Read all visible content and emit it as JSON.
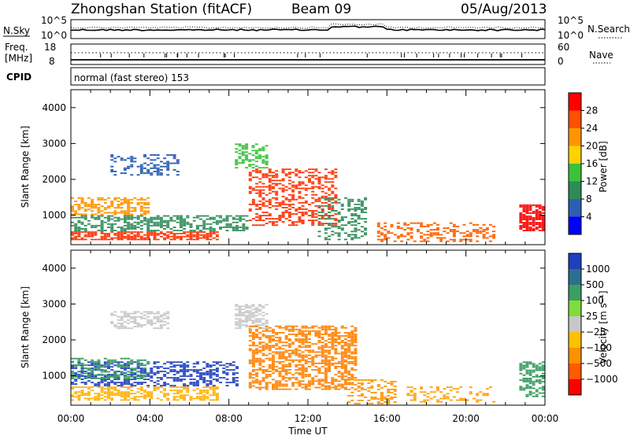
{
  "header": {
    "title": "Zhongshan Station (fitACF)",
    "beam": "Beam 09",
    "date": "05/Aug/2013"
  },
  "status_panel": {
    "nsky_label": "N.Sky",
    "nsky_ticks": [
      "10^5",
      "10^0"
    ],
    "nsearch_label": "N.Search",
    "nsearch_ticks": [
      "10^5",
      "10^0"
    ],
    "freq_label_1": "Freq.",
    "freq_label_2": "[MHz]",
    "freq_ticks": [
      "18",
      "8"
    ],
    "nave_label": "Nave",
    "nave_ticks": [
      "60",
      "0"
    ],
    "cpid_label": "CPID",
    "cpid_text": "normal (fast stereo) 153"
  },
  "chart_data": [
    {
      "type": "heatmap",
      "name": "power",
      "ylabel": "Slant Range [km]",
      "y_ticks": [
        "4000",
        "3000",
        "2000",
        "1000"
      ],
      "ylim": [
        180,
        4500
      ],
      "xlim_hours": [
        0,
        24
      ],
      "colorbar": {
        "label": "Power [dB]",
        "tick_labels": [
          "28",
          "24",
          "20",
          "16",
          "12",
          "8",
          "4"
        ],
        "colors": [
          "#ff0000",
          "#ff5000",
          "#ff9600",
          "#ffd200",
          "#39c23a",
          "#2e8b57",
          "#2b5fb3",
          "#0000ff"
        ]
      },
      "scatter_regions": [
        {
          "t0": 0.0,
          "t1": 7.5,
          "r0": 300,
          "r1": 550,
          "color": "#ff3000",
          "density": 0.7
        },
        {
          "t0": 0.0,
          "t1": 9.0,
          "r0": 550,
          "r1": 1000,
          "color": "#2e8b57",
          "density": 0.55
        },
        {
          "t0": 0.0,
          "t1": 4.0,
          "r0": 1000,
          "r1": 1500,
          "color": "#ff9600",
          "density": 0.5
        },
        {
          "t0": 2.0,
          "t1": 5.5,
          "r0": 2100,
          "r1": 2700,
          "color": "#2b5fb3",
          "density": 0.35
        },
        {
          "t0": 8.3,
          "t1": 10.0,
          "r0": 2300,
          "r1": 3000,
          "color": "#39c23a",
          "density": 0.45
        },
        {
          "t0": 9.0,
          "t1": 13.5,
          "r0": 700,
          "r1": 2300,
          "color": "#ff3000",
          "density": 0.45
        },
        {
          "t0": 12.5,
          "t1": 15.0,
          "r0": 300,
          "r1": 1500,
          "color": "#2e8b57",
          "density": 0.35
        },
        {
          "t0": 15.5,
          "t1": 21.5,
          "r0": 250,
          "r1": 800,
          "color": "#ff6000",
          "density": 0.35
        },
        {
          "t0": 22.7,
          "t1": 24.0,
          "r0": 550,
          "r1": 1300,
          "color": "#ff0000",
          "density": 0.8
        }
      ]
    },
    {
      "type": "heatmap",
      "name": "velocity",
      "ylabel": "Slant Range [km]",
      "y_ticks": [
        "4000",
        "3000",
        "2000",
        "1000"
      ],
      "ylim": [
        180,
        4500
      ],
      "xlim_hours": [
        0,
        24
      ],
      "xlabel": "Time UT",
      "x_ticks": [
        "00:00",
        "04:00",
        "08:00",
        "12:00",
        "16:00",
        "20:00",
        "00:00"
      ],
      "colorbar": {
        "label": "Velocity [m s⁻¹]",
        "tick_labels": [
          "1000",
          "500",
          "100",
          "25",
          "−25",
          "−100",
          "−500",
          "−1000"
        ],
        "colors": [
          "#1f3fbf",
          "#2e6f8f",
          "#3aa060",
          "#7fdc3a",
          "#c8c8c8",
          "#ffc000",
          "#ff9000",
          "#ff5a00",
          "#ff0000"
        ]
      },
      "scatter_regions": [
        {
          "t0": 0.0,
          "t1": 7.5,
          "r0": 300,
          "r1": 700,
          "color": "#ffb000",
          "density": 0.55
        },
        {
          "t0": 0.0,
          "t1": 8.5,
          "r0": 700,
          "r1": 1400,
          "color": "#1f3fbf",
          "density": 0.5
        },
        {
          "t0": 0.0,
          "t1": 4.0,
          "r0": 900,
          "r1": 1500,
          "color": "#3aa060",
          "density": 0.4
        },
        {
          "t0": 2.0,
          "t1": 5.0,
          "r0": 2300,
          "r1": 2800,
          "color": "#c8c8c8",
          "density": 0.5
        },
        {
          "t0": 8.3,
          "t1": 10.0,
          "r0": 2300,
          "r1": 3000,
          "color": "#c8c8c8",
          "density": 0.55
        },
        {
          "t0": 9.0,
          "t1": 14.5,
          "r0": 600,
          "r1": 2400,
          "color": "#ff8000",
          "density": 0.55
        },
        {
          "t0": 14.0,
          "t1": 16.5,
          "r0": 200,
          "r1": 900,
          "color": "#ff9600",
          "density": 0.4
        },
        {
          "t0": 17.0,
          "t1": 21.5,
          "r0": 250,
          "r1": 700,
          "color": "#ffa000",
          "density": 0.35
        },
        {
          "t0": 22.7,
          "t1": 24.0,
          "r0": 400,
          "r1": 1400,
          "color": "#3aa060",
          "density": 0.6
        }
      ]
    }
  ]
}
